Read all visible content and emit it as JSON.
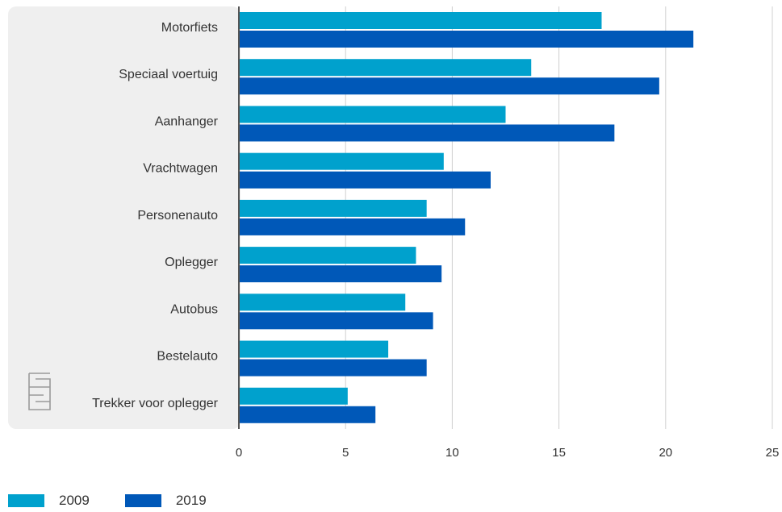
{
  "chart_data": {
    "type": "bar",
    "orientation": "horizontal",
    "categories": [
      "Motorfiets",
      "Speciaal voertuig",
      "Aanhanger",
      "Vrachtwagen",
      "Personenauto",
      "Oplegger",
      "Autobus",
      "Bestelauto",
      "Trekker voor oplegger"
    ],
    "series": [
      {
        "name": "2009",
        "color": "#00a1cd",
        "values": [
          17.0,
          13.7,
          12.5,
          9.6,
          8.8,
          8.3,
          7.8,
          7.0,
          5.1
        ]
      },
      {
        "name": "2019",
        "color": "#0058b8",
        "values": [
          21.3,
          19.7,
          17.6,
          11.8,
          10.6,
          9.5,
          9.1,
          8.8,
          6.4
        ]
      }
    ],
    "xlim": [
      0,
      25
    ],
    "xticks": [
      0,
      5,
      10,
      15,
      20,
      25
    ],
    "grid": true,
    "legend_position": "bottom-left"
  },
  "branding": {
    "logo_icon": "cbs-logo-icon",
    "panel_color": "#efefef"
  }
}
